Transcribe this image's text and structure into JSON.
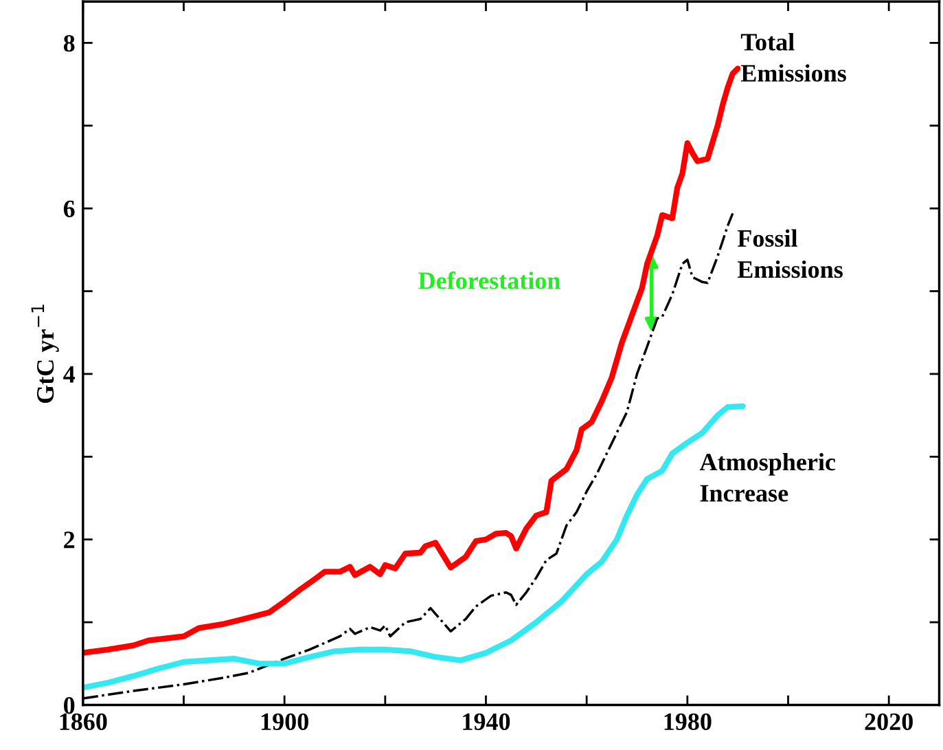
{
  "chart_data": {
    "type": "line",
    "ylabel": "GtC yr$^{−1}$",
    "xlim": [
      1860,
      2030
    ],
    "ylim": [
      0,
      8.5
    ],
    "xticks": [
      1860,
      {
        "value": 1880,
        "label": null
      },
      1900,
      {
        "value": 1920,
        "label": null
      },
      1940,
      {
        "value": 1960,
        "label": null
      },
      1980,
      {
        "value": 2000,
        "label": null
      },
      2020
    ],
    "yticks": [
      0,
      {
        "value": 1,
        "label": null
      },
      2,
      {
        "value": 3,
        "label": null
      },
      4,
      {
        "value": 5,
        "label": null
      },
      6,
      {
        "value": 7,
        "label": null
      },
      8
    ],
    "grid": false,
    "legend": false,
    "marker": "none",
    "annotations": [
      "Total\nEmissions",
      "Fossil\nEmissions",
      "Atmospheric\nIncrease",
      "Deforestation"
    ],
    "series": [
      {
        "color": "#ff0000",
        "line_style": "solid",
        "x": [
          1860,
          1865,
          1870,
          1873,
          1880,
          1883,
          1888,
          1892,
          1897,
          1900,
          1903,
          1906,
          1908,
          1911,
          1913,
          1914,
          1917,
          1919,
          1920,
          1922,
          1924,
          1927,
          1928,
          1930,
          1933,
          1936,
          1938,
          1940,
          1942,
          1944,
          1945,
          1946,
          1948,
          1950,
          1952,
          1953,
          1956,
          1958,
          1959,
          1961,
          1963,
          1965,
          1967,
          1969,
          1971,
          1972,
          1974,
          1975,
          1977,
          1978,
          1979,
          1980,
          1981,
          1982,
          1984,
          1986,
          1987,
          1988,
          1989,
          1990
        ],
        "values": [
          0.63,
          0.67,
          0.72,
          0.78,
          0.83,
          0.93,
          0.98,
          1.04,
          1.12,
          1.25,
          1.39,
          1.52,
          1.61,
          1.61,
          1.67,
          1.57,
          1.67,
          1.58,
          1.69,
          1.65,
          1.83,
          1.84,
          1.92,
          1.96,
          1.66,
          1.79,
          1.98,
          2.0,
          2.07,
          2.08,
          2.04,
          1.89,
          2.13,
          2.29,
          2.33,
          2.71,
          2.85,
          3.08,
          3.33,
          3.42,
          3.67,
          3.96,
          4.38,
          4.71,
          5.04,
          5.33,
          5.67,
          5.92,
          5.88,
          6.25,
          6.42,
          6.79,
          6.67,
          6.57,
          6.6,
          7.0,
          7.25,
          7.46,
          7.63,
          7.69
        ]
      },
      {
        "color": "#000000",
        "line_style": "dashdot",
        "x": [
          1860,
          1870,
          1880,
          1888,
          1893,
          1900,
          1905,
          1908,
          1911,
          1913,
          1914,
          1917,
          1919,
          1920,
          1921,
          1924,
          1927,
          1929,
          1932,
          1933,
          1936,
          1938,
          1941,
          1944,
          1945,
          1946,
          1948,
          1950,
          1952,
          1954,
          1956,
          1958,
          1960,
          1962,
          1964,
          1966,
          1968,
          1970,
          1972,
          1974,
          1975,
          1977,
          1979,
          1980,
          1981,
          1983,
          1984,
          1986,
          1988,
          1989
        ],
        "values": [
          0.08,
          0.17,
          0.25,
          0.33,
          0.39,
          0.56,
          0.67,
          0.75,
          0.83,
          0.92,
          0.86,
          0.94,
          0.9,
          0.96,
          0.83,
          1.0,
          1.04,
          1.17,
          0.96,
          0.89,
          1.04,
          1.19,
          1.32,
          1.36,
          1.33,
          1.21,
          1.36,
          1.54,
          1.75,
          1.83,
          2.17,
          2.33,
          2.58,
          2.79,
          3.04,
          3.29,
          3.54,
          4.0,
          4.33,
          4.67,
          4.69,
          4.96,
          5.33,
          5.38,
          5.17,
          5.11,
          5.1,
          5.42,
          5.79,
          5.94
        ]
      },
      {
        "color": "#33e8f0",
        "line_style": "solid",
        "x": [
          1860,
          1865,
          1870,
          1875,
          1880,
          1885,
          1890,
          1895,
          1900,
          1905,
          1910,
          1915,
          1920,
          1925,
          1930,
          1935,
          1940,
          1945,
          1950,
          1955,
          1960,
          1963,
          1966,
          1968,
          1970,
          1972,
          1975,
          1977,
          1980,
          1983,
          1986,
          1988,
          1991
        ],
        "values": [
          0.21,
          0.27,
          0.35,
          0.44,
          0.52,
          0.54,
          0.56,
          0.5,
          0.5,
          0.58,
          0.65,
          0.67,
          0.67,
          0.65,
          0.58,
          0.54,
          0.63,
          0.78,
          1.0,
          1.25,
          1.58,
          1.73,
          2.0,
          2.29,
          2.54,
          2.73,
          2.83,
          3.04,
          3.17,
          3.29,
          3.5,
          3.6,
          3.61
        ]
      }
    ]
  }
}
